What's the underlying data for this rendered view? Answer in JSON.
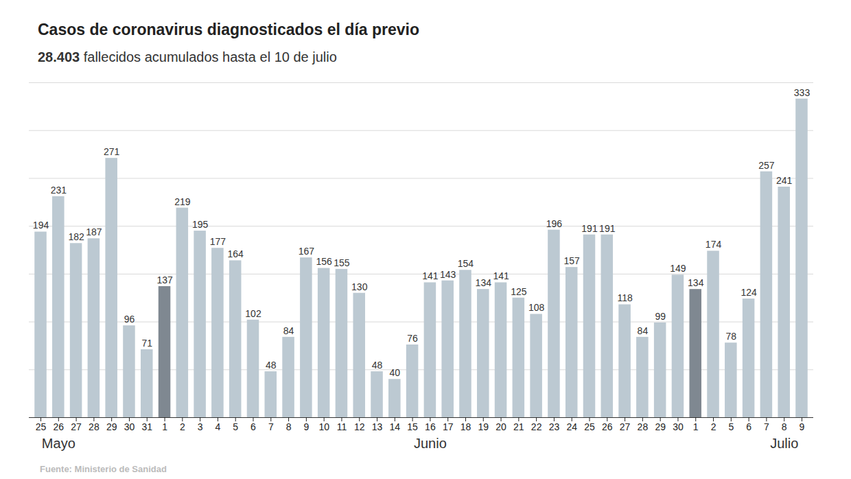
{
  "chart_data": {
    "type": "bar",
    "title": "Casos de coronavirus diagnosticados el día previo",
    "subtitle": "28.403 fallecidos acumulados hasta el 10 de julio",
    "source": "Fuente: Ministerio de Sanidad",
    "categories": [
      "25",
      "26",
      "27",
      "28",
      "29",
      "30",
      "31",
      "1",
      "2",
      "3",
      "4",
      "5",
      "6",
      "7",
      "8",
      "9",
      "10",
      "11",
      "12",
      "13",
      "14",
      "15",
      "16",
      "17",
      "18",
      "19",
      "20",
      "21",
      "22",
      "23",
      "24",
      "25",
      "26",
      "27",
      "28",
      "29",
      "30",
      "1",
      "2",
      "5",
      "6",
      "7",
      "8",
      "9"
    ],
    "values": [
      194,
      231,
      182,
      187,
      271,
      96,
      71,
      137,
      219,
      195,
      177,
      164,
      102,
      48,
      84,
      167,
      156,
      155,
      130,
      48,
      40,
      76,
      141,
      143,
      154,
      134,
      141,
      125,
      108,
      196,
      157,
      191,
      191,
      118,
      84,
      99,
      149,
      134,
      174,
      78,
      124,
      257,
      241,
      333
    ],
    "colors": [
      "#bcc9d2",
      "#bcc9d2",
      "#bcc9d2",
      "#bcc9d2",
      "#bcc9d2",
      "#bcc9d2",
      "#bcc9d2",
      "#7f8891",
      "#bcc9d2",
      "#bcc9d2",
      "#bcc9d2",
      "#bcc9d2",
      "#bcc9d2",
      "#bcc9d2",
      "#bcc9d2",
      "#bcc9d2",
      "#bcc9d2",
      "#bcc9d2",
      "#bcc9d2",
      "#bcc9d2",
      "#bcc9d2",
      "#bcc9d2",
      "#bcc9d2",
      "#bcc9d2",
      "#bcc9d2",
      "#bcc9d2",
      "#bcc9d2",
      "#bcc9d2",
      "#bcc9d2",
      "#bcc9d2",
      "#bcc9d2",
      "#bcc9d2",
      "#bcc9d2",
      "#bcc9d2",
      "#bcc9d2",
      "#bcc9d2",
      "#bcc9d2",
      "#7f8891",
      "#bcc9d2",
      "#bcc9d2",
      "#bcc9d2",
      "#bcc9d2",
      "#bcc9d2",
      "#bcc9d2"
    ],
    "annotations": [
      {
        "text": "Mayo",
        "x": 1
      },
      {
        "text": "Junio",
        "x": 22
      },
      {
        "text": "Julio",
        "x": 42
      }
    ],
    "ylim": [
      0,
      350
    ],
    "yticks": [
      0,
      50,
      100,
      150,
      200,
      250,
      300,
      350
    ],
    "grid": true,
    "data_labels": true,
    "tick_labels": "x"
  }
}
